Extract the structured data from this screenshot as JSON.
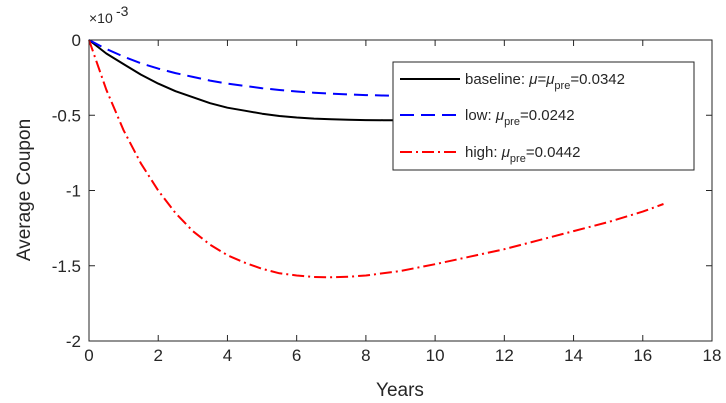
{
  "chart_data": {
    "type": "line",
    "title": "",
    "xlabel": "Years",
    "ylabel": "Average Coupon",
    "xlim": [
      0,
      18
    ],
    "ylim": [
      -2,
      0
    ],
    "xticks": [
      0,
      2,
      4,
      6,
      8,
      10,
      12,
      14,
      16,
      18
    ],
    "yticks": [
      0,
      -0.5,
      -1,
      -1.5,
      -2
    ],
    "ytick_labels": [
      "0",
      "-0.5",
      "-1",
      "-1.5",
      "-2"
    ],
    "xtick_labels": [
      "0",
      "2",
      "4",
      "6",
      "8",
      "10",
      "12",
      "14",
      "16",
      "18"
    ],
    "y_scale_base": "×10",
    "y_scale_exponent": "-3",
    "grid": false,
    "legend_position": "top-right",
    "series": [
      {
        "key": "baseline",
        "legend_prefix": "baseline: ",
        "legend_sym1": "μ",
        "legend_eq": "=",
        "legend_sym2": "μ",
        "legend_sub": "pre",
        "legend_value": "=0.0342",
        "color": "#000000",
        "dash": "solid",
        "x": [
          0,
          0.5,
          1,
          1.5,
          2,
          2.5,
          3,
          3.5,
          4,
          4.5,
          5,
          5.5,
          6,
          6.5,
          7,
          7.5,
          8,
          8.5,
          9,
          9.5,
          10
        ],
        "y": [
          0,
          -0.09,
          -0.16,
          -0.23,
          -0.29,
          -0.34,
          -0.38,
          -0.42,
          -0.45,
          -0.47,
          -0.49,
          -0.505,
          -0.515,
          -0.522,
          -0.527,
          -0.53,
          -0.532,
          -0.533,
          -0.533,
          -0.533,
          -0.533
        ]
      },
      {
        "key": "low",
        "legend_prefix": "low: ",
        "legend_sym1": "μ",
        "legend_eq": "",
        "legend_sym2": "",
        "legend_sub": "pre",
        "legend_value": "=0.0242",
        "color": "#0000ff",
        "dash": "dashed",
        "x": [
          0,
          0.5,
          1,
          1.5,
          2,
          2.5,
          3,
          3.5,
          4,
          4.5,
          5,
          5.5,
          6,
          6.5,
          7,
          7.5,
          8,
          8.5,
          9,
          9.5,
          10
        ],
        "y": [
          0,
          -0.06,
          -0.11,
          -0.155,
          -0.19,
          -0.22,
          -0.245,
          -0.27,
          -0.29,
          -0.305,
          -0.32,
          -0.332,
          -0.342,
          -0.35,
          -0.357,
          -0.362,
          -0.366,
          -0.369,
          -0.371,
          -0.372,
          -0.373
        ]
      },
      {
        "key": "high",
        "legend_prefix": "high: ",
        "legend_sym1": "μ",
        "legend_eq": "",
        "legend_sym2": "",
        "legend_sub": "pre",
        "legend_value": "=0.0442",
        "color": "#ff0000",
        "dash": "dashdot",
        "x": [
          0,
          0.5,
          1,
          1.5,
          2,
          2.5,
          3,
          3.5,
          4,
          4.5,
          5,
          5.5,
          6,
          6.5,
          7,
          7.5,
          8,
          9,
          10,
          11,
          12,
          13,
          14,
          15,
          16,
          16.6
        ],
        "y": [
          0,
          -0.33,
          -0.6,
          -0.82,
          -1.0,
          -1.15,
          -1.27,
          -1.36,
          -1.43,
          -1.48,
          -1.52,
          -1.55,
          -1.565,
          -1.575,
          -1.577,
          -1.573,
          -1.565,
          -1.535,
          -1.49,
          -1.44,
          -1.39,
          -1.33,
          -1.27,
          -1.21,
          -1.14,
          -1.09
        ]
      }
    ]
  }
}
